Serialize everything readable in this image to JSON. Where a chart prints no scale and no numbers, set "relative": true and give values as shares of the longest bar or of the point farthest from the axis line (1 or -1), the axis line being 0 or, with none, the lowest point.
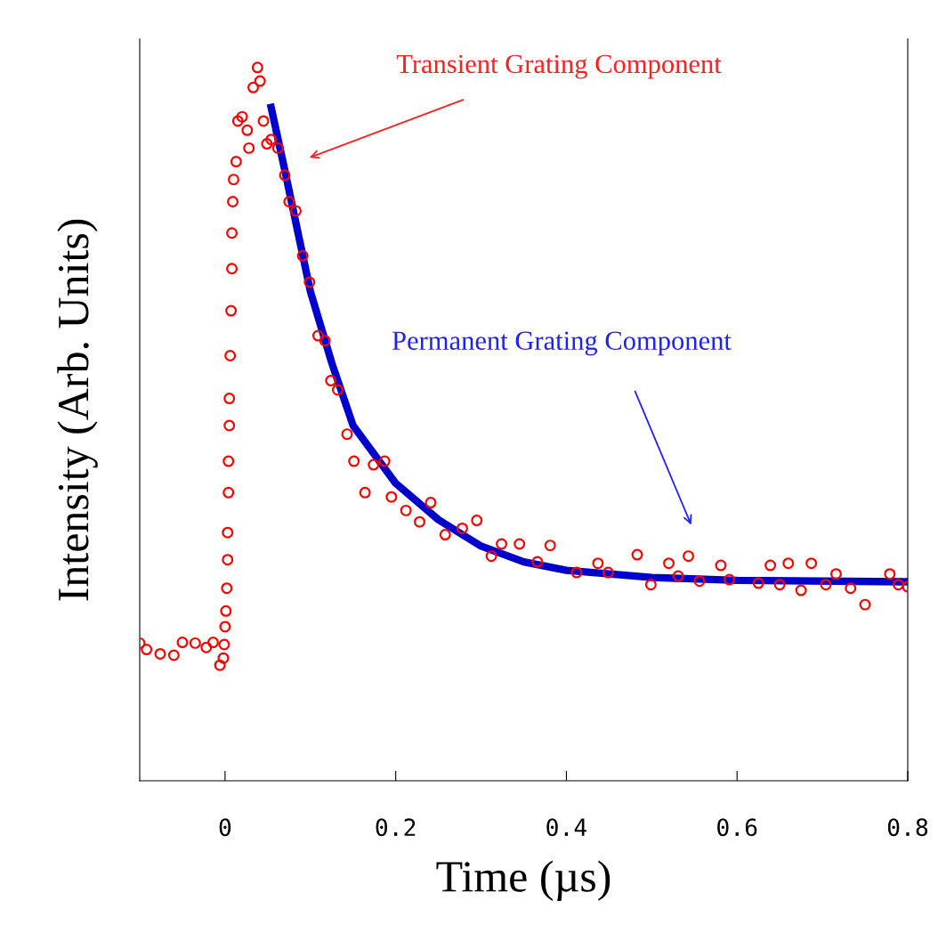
{
  "chart_data": {
    "type": "scatter",
    "relative": true,
    "xlabel": "Time (µs)",
    "ylabel": "Intensity (Arb. Units)",
    "xlim": [
      -0.1,
      0.8
    ],
    "xticks": [
      0,
      0.2,
      0.4,
      0.6,
      0.8
    ],
    "grid": false,
    "legend": false,
    "tick_labels": "x",
    "series": [
      {
        "marker": "circle",
        "color": "#ff0000",
        "x": [
          -0.1,
          -0.092,
          -0.076,
          -0.06,
          -0.05,
          -0.035,
          -0.022,
          -0.014,
          -0.006,
          -0.002,
          -0.001,
          0.0,
          0.001,
          0.002,
          0.003,
          0.003,
          0.004,
          0.004,
          0.005,
          0.005,
          0.006,
          0.007,
          0.008,
          0.008,
          0.009,
          0.01,
          0.013,
          0.015,
          0.02,
          0.026,
          0.028,
          0.033,
          0.038,
          0.041,
          0.045,
          0.049,
          0.054,
          0.062,
          0.07,
          0.075,
          0.083,
          0.091,
          0.099,
          0.109,
          0.117,
          0.124,
          0.132,
          0.143,
          0.151,
          0.164,
          0.174,
          0.187,
          0.195,
          0.212,
          0.228,
          0.241,
          0.258,
          0.278,
          0.295,
          0.312,
          0.324,
          0.345,
          0.366,
          0.381,
          0.412,
          0.437,
          0.449,
          0.483,
          0.499,
          0.52,
          0.531,
          0.543,
          0.556,
          0.581,
          0.591,
          0.625,
          0.639,
          0.65,
          0.66,
          0.675,
          0.687,
          0.704,
          0.716,
          0.733,
          0.75,
          0.779,
          0.789,
          0.8
        ],
        "values": [
          0.193,
          0.184,
          0.178,
          0.176,
          0.194,
          0.193,
          0.187,
          0.194,
          0.162,
          0.172,
          0.191,
          0.216,
          0.238,
          0.27,
          0.31,
          0.348,
          0.404,
          0.448,
          0.498,
          0.536,
          0.596,
          0.659,
          0.718,
          0.768,
          0.812,
          0.843,
          0.868,
          0.925,
          0.931,
          0.912,
          0.887,
          0.972,
          1,
          0.981,
          0.925,
          0.893,
          0.899,
          0.887,
          0.849,
          0.812,
          0.799,
          0.736,
          0.699,
          0.624,
          0.617,
          0.561,
          0.548,
          0.486,
          0.448,
          0.404,
          0.443,
          0.448,
          0.398,
          0.379,
          0.363,
          0.39,
          0.345,
          0.354,
          0.365,
          0.315,
          0.332,
          0.332,
          0.307,
          0.33,
          0.292,
          0.305,
          0.292,
          0.317,
          0.275,
          0.305,
          0.287,
          0.315,
          0.28,
          0.302,
          0.282,
          0.277,
          0.302,
          0.275,
          0.305,
          0.267,
          0.305,
          0.275,
          0.29,
          0.27,
          0.247,
          0.29,
          0.275,
          0.272
        ]
      },
      {
        "type": "line",
        "marker": "none",
        "line_style": "solid",
        "color": "#0000cc",
        "x": [
          0.054,
          0.07,
          0.1,
          0.125,
          0.15,
          0.2,
          0.25,
          0.3,
          0.35,
          0.4,
          0.5,
          0.6,
          0.8
        ],
        "values": [
          0.944,
          0.856,
          0.686,
          0.586,
          0.498,
          0.417,
          0.366,
          0.329,
          0.307,
          0.295,
          0.285,
          0.281,
          0.279
        ]
      }
    ],
    "annotations": [
      "Transient Grating Component",
      "Permanent Grating Component"
    ]
  }
}
